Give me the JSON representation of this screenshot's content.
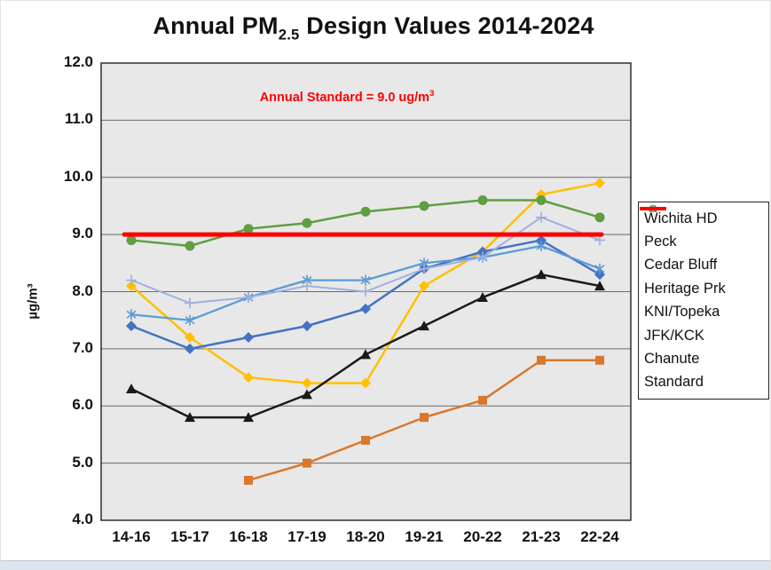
{
  "window": {
    "title_pre": "Annual PM",
    "title_sub": "2.5",
    "title_post": " Design Values 2014-2024"
  },
  "annotation": {
    "pre": "Annual Standard = 9.0 ug/m",
    "sup": "3"
  },
  "chart_data": {
    "type": "line",
    "title": "Annual PM2.5 Design Values 2014-2024",
    "xlabel": "",
    "ylabel": "µg/m³",
    "ylim": [
      4.0,
      12.0
    ],
    "ytick_labels": [
      "4.0",
      "5.0",
      "6.0",
      "7.0",
      "8.0",
      "9.0",
      "10.0",
      "11.0",
      "12.0"
    ],
    "grid": true,
    "legend_position": "right",
    "plot_background": "#e8e8e8",
    "gridline_color": "#6a6a6a",
    "annotation_text": "Annual Standard = 9.0 ug/m3",
    "categories": [
      "14-16",
      "15-17",
      "16-18",
      "17-19",
      "18-20",
      "19-21",
      "20-22",
      "21-23",
      "22-24"
    ],
    "series": [
      {
        "name": "Wichita HD",
        "color": "#FFC000",
        "marker": "diamond",
        "line_width": 2.5,
        "values": [
          8.1,
          7.2,
          6.5,
          6.4,
          6.4,
          8.1,
          8.7,
          9.7,
          9.9
        ]
      },
      {
        "name": "Peck",
        "color": "#4472C4",
        "marker": "diamond",
        "line_width": 2.5,
        "values": [
          7.4,
          7.0,
          7.2,
          7.4,
          7.7,
          8.4,
          8.7,
          8.9,
          8.3
        ]
      },
      {
        "name": "Cedar Bluff",
        "color": "#D9782D",
        "marker": "square",
        "line_width": 2.5,
        "values": [
          null,
          null,
          4.7,
          5.0,
          5.4,
          5.8,
          6.1,
          6.8,
          6.8
        ]
      },
      {
        "name": "Heritage Prk",
        "color": "#1A1A1A",
        "marker": "triangle",
        "line_width": 2.5,
        "values": [
          6.3,
          5.8,
          5.8,
          6.2,
          6.9,
          7.4,
          7.9,
          8.3,
          8.1
        ]
      },
      {
        "name": "KNI/Topeka",
        "color": "#5B9BD5",
        "marker": "asterisk",
        "line_width": 2.25,
        "values": [
          7.6,
          7.5,
          7.9,
          8.2,
          8.2,
          8.5,
          8.6,
          8.8,
          8.4
        ]
      },
      {
        "name": "JFK/KCK",
        "color": "#5F9E41",
        "marker": "circle",
        "line_width": 2.5,
        "values": [
          8.9,
          8.8,
          9.1,
          9.2,
          9.4,
          9.5,
          9.6,
          9.6,
          9.3
        ]
      },
      {
        "name": "Chanute",
        "color": "#9FB0DF",
        "marker": "plus",
        "line_width": 2.0,
        "values": [
          8.2,
          7.8,
          7.9,
          8.1,
          8.0,
          8.4,
          8.6,
          9.3,
          8.9
        ]
      },
      {
        "name": "Standard",
        "color": "#FF0000",
        "marker": "none",
        "line_width": 5,
        "values": [
          9.0,
          9.0,
          9.0,
          9.0,
          9.0,
          9.0,
          9.0,
          9.0,
          9.0
        ],
        "straight_span": true
      }
    ]
  }
}
